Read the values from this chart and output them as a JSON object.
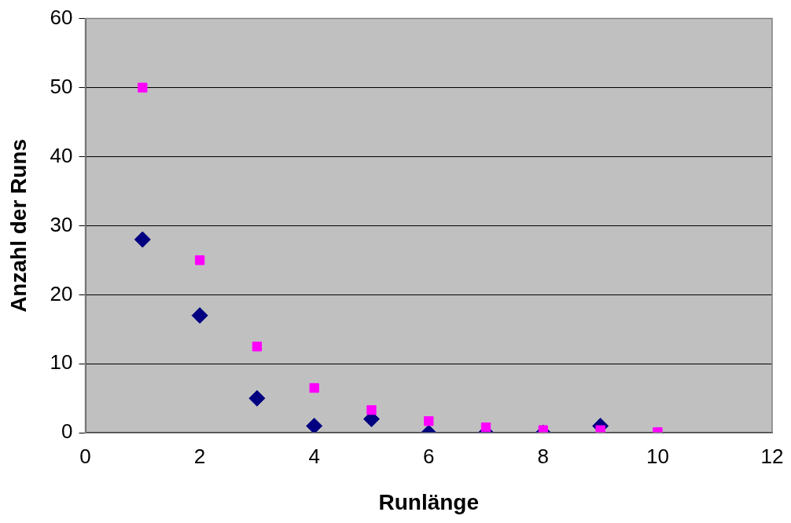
{
  "chart_data": {
    "type": "scatter",
    "xlabel": "Runlänge",
    "ylabel": "Anzahl der Runs",
    "x": [
      1,
      2,
      3,
      4,
      5,
      6,
      7,
      8,
      9,
      10
    ],
    "series": [
      {
        "color": "#000080",
        "marker": "diamond",
        "values": [
          28,
          17,
          5,
          1,
          2,
          0,
          0,
          0,
          1,
          null
        ]
      },
      {
        "color": "#ff00ff",
        "marker": "square",
        "values": [
          50,
          25,
          12.5,
          6.5,
          3.3,
          1.7,
          0.8,
          0.4,
          0.4,
          0.1
        ]
      }
    ],
    "xlim": [
      0,
      12
    ],
    "xticks": [
      0,
      2,
      4,
      6,
      8,
      10,
      12
    ],
    "ylim": [
      0,
      60
    ],
    "yticks": [
      0,
      10,
      20,
      30,
      40,
      50,
      60
    ],
    "grid": "y",
    "legend": false
  }
}
